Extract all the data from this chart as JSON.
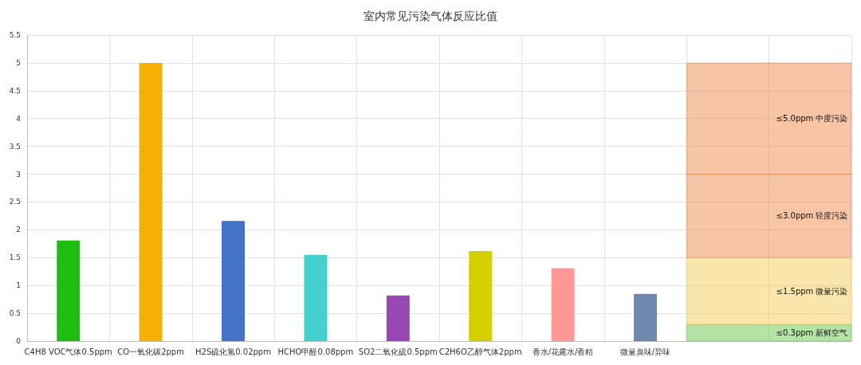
{
  "chart_data": {
    "type": "bar",
    "title": "室内常见污染气体反应比值",
    "categories": [
      "C4H8 VOC气体0.5ppm",
      "CO一氧化碳2ppm",
      "H2S硫化氢0.02ppm",
      "HCHO甲醛0.08ppm",
      "SO2二氧化硫0.5ppm",
      "C2H6O乙醇气体2ppm",
      "香水/花露水/香精",
      "微量臭味/异味",
      null,
      null
    ],
    "values": [
      1.81,
      5.0,
      2.16,
      1.55,
      0.82,
      1.62,
      1.31,
      0.85,
      null,
      null
    ],
    "colors": [
      "#1ebd12",
      "#f5b000",
      "#4472c4",
      "#42d0cf",
      "#9847b3",
      "#d4d000",
      "#ff9797",
      "#6f88ad",
      "#888888",
      "#888888"
    ],
    "ylim": [
      0,
      5.5
    ],
    "yticks": [
      0,
      0.5,
      1,
      1.5,
      2,
      2.5,
      3,
      3.5,
      4,
      4.5,
      5,
      5.5
    ],
    "grid": true,
    "bands": [
      {
        "axis": "y",
        "from": 0,
        "to": 0.3,
        "label": "≤0.3ppm 新鲜空气",
        "color": "#5cc23a"
      },
      {
        "axis": "y",
        "from": 0.3,
        "to": 1.5,
        "label": "≤1.5ppm 微量污染",
        "color": "#f5c842"
      },
      {
        "axis": "y",
        "from": 1.5,
        "to": 3.0,
        "label": "≤3.0ppm 轻度污染",
        "color": "#ee7d3a"
      },
      {
        "axis": "y",
        "from": 3.0,
        "to": 5.0,
        "label": "≤5.0ppm 中度污染",
        "color": "#ee7d3a"
      }
    ]
  }
}
